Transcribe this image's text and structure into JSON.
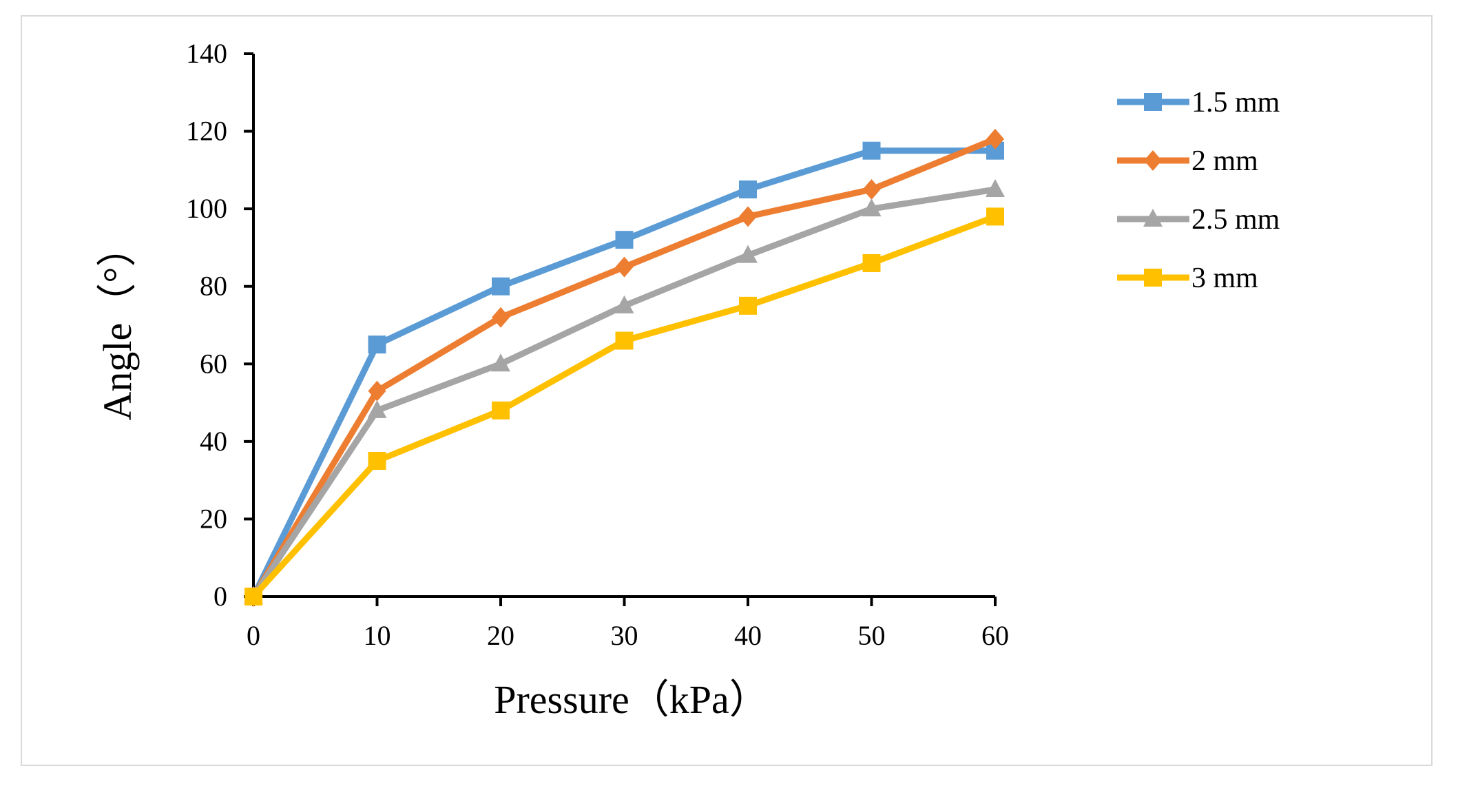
{
  "chart_data": {
    "type": "line",
    "title": "",
    "xlabel": "Pressure（kPa）",
    "ylabel": "Angle（°）",
    "x": [
      0,
      10,
      20,
      30,
      40,
      50,
      60
    ],
    "xlim": [
      0,
      60
    ],
    "ylim": [
      0,
      140
    ],
    "xticks": [
      0,
      10,
      20,
      30,
      40,
      50,
      60
    ],
    "yticks": [
      0,
      20,
      40,
      60,
      80,
      100,
      120,
      140
    ],
    "grid": false,
    "legend_position": "right",
    "series": [
      {
        "name": "1.5 mm",
        "color": "#5b9bd5",
        "marker": "square",
        "values": [
          0,
          65,
          80,
          92,
          105,
          115,
          115
        ]
      },
      {
        "name": "2 mm",
        "color": "#ed7d31",
        "marker": "diamond",
        "values": [
          0,
          53,
          72,
          85,
          98,
          105,
          118
        ]
      },
      {
        "name": "2.5 mm",
        "color": "#a5a5a5",
        "marker": "triangle",
        "values": [
          0,
          48,
          60,
          75,
          88,
          100,
          105
        ]
      },
      {
        "name": "3 mm",
        "color": "#ffc000",
        "marker": "square",
        "values": [
          0,
          35,
          48,
          66,
          75,
          86,
          98
        ]
      }
    ]
  }
}
